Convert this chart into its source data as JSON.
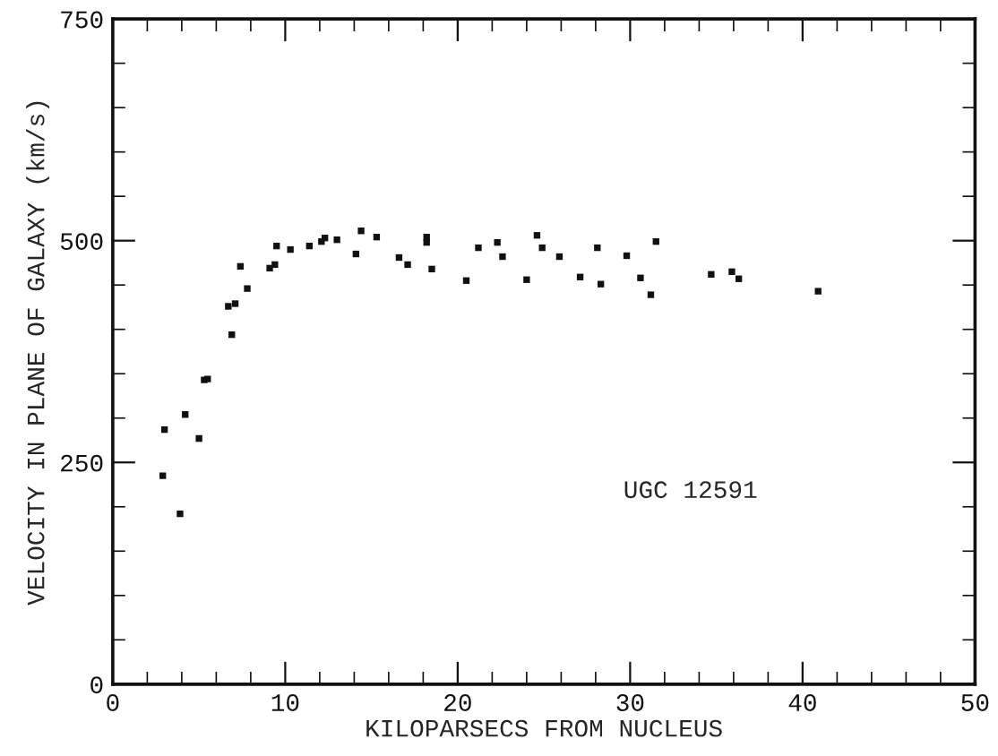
{
  "chart_data": {
    "type": "scatter",
    "xlabel": "KILOPARSECS FROM NUCLEUS",
    "ylabel": "VELOCITY IN PLANE OF GALAXY (km/s)",
    "annotations": [
      "UGC 12591"
    ],
    "x": [
      2.9,
      3.0,
      3.9,
      4.2,
      5.0,
      5.3,
      5.5,
      6.9,
      6.7,
      7.1,
      7.4,
      7.8,
      9.1,
      9.4,
      9.5,
      10.3,
      11.4,
      12.1,
      12.3,
      13.0,
      14.1,
      14.4,
      15.3,
      16.6,
      17.1,
      18.2,
      18.2,
      18.5,
      20.5,
      21.2,
      22.3,
      22.6,
      24.0,
      24.6,
      24.9,
      25.9,
      27.1,
      28.1,
      28.3,
      29.8,
      30.6,
      31.2,
      31.5,
      34.7,
      35.9,
      36.3,
      40.9
    ],
    "series": [
      {
        "color": "#111111",
        "values": [
          235,
          287,
          192,
          304,
          277,
          343,
          344,
          394,
          426,
          429,
          471,
          446,
          469,
          473,
          494,
          490,
          494,
          499,
          503,
          501,
          485,
          511,
          504,
          481,
          473,
          504,
          498,
          468,
          455,
          492,
          498,
          482,
          456,
          506,
          492,
          482,
          459,
          492,
          451,
          483,
          458,
          439,
          499,
          462,
          465,
          457,
          443
        ]
      }
    ],
    "marker": "square",
    "xlim": [
      0,
      50
    ],
    "ylim": [
      0,
      750
    ],
    "xticks": [
      0,
      {
        "value": 2,
        "label": null
      },
      {
        "value": 4,
        "label": null
      },
      {
        "value": 6,
        "label": null
      },
      {
        "value": 8,
        "label": null
      },
      10,
      {
        "value": 12,
        "label": null
      },
      {
        "value": 14,
        "label": null
      },
      {
        "value": 16,
        "label": null
      },
      {
        "value": 18,
        "label": null
      },
      20,
      {
        "value": 22,
        "label": null
      },
      {
        "value": 24,
        "label": null
      },
      {
        "value": 26,
        "label": null
      },
      {
        "value": 28,
        "label": null
      },
      30,
      {
        "value": 32,
        "label": null
      },
      {
        "value": 34,
        "label": null
      },
      {
        "value": 36,
        "label": null
      },
      {
        "value": 38,
        "label": null
      },
      40,
      {
        "value": 42,
        "label": null
      },
      {
        "value": 44,
        "label": null
      },
      {
        "value": 46,
        "label": null
      },
      {
        "value": 48,
        "label": null
      },
      50
    ],
    "yticks": [
      0,
      {
        "value": 50,
        "label": null
      },
      {
        "value": 100,
        "label": null
      },
      {
        "value": 150,
        "label": null
      },
      {
        "value": 200,
        "label": null
      },
      250,
      {
        "value": 300,
        "label": null
      },
      {
        "value": 350,
        "label": null
      },
      {
        "value": 400,
        "label": null
      },
      {
        "value": 450,
        "label": null
      },
      500,
      {
        "value": 550,
        "label": null
      },
      {
        "value": 600,
        "label": null
      },
      {
        "value": 650,
        "label": null
      },
      {
        "value": 700,
        "label": null
      },
      750
    ],
    "grid": false,
    "legend": false
  }
}
